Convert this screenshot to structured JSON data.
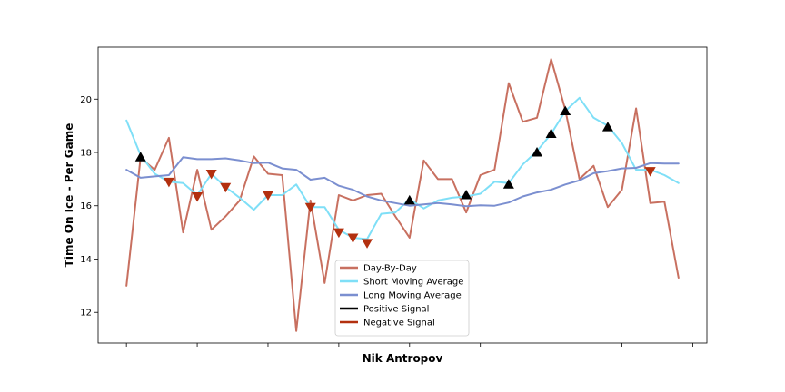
{
  "chart_data": {
    "type": "line",
    "title": "",
    "xlabel": "Nik Antropov",
    "ylabel": "Time On Ice - Per Game",
    "ylim": [
      10.85,
      21.95
    ],
    "xlim": [
      -2,
      41
    ],
    "yticks": [
      12,
      14,
      16,
      18,
      20
    ],
    "x_tick_positions": [
      0,
      5,
      10,
      15,
      20,
      25,
      30,
      35,
      40
    ],
    "x_tick_labels": [
      "",
      "",
      "",
      "",
      "",
      "",
      "",
      "",
      ""
    ],
    "grid": false,
    "legend_position": "lower-center",
    "x": [
      0,
      1,
      2,
      3,
      4,
      5,
      6,
      7,
      8,
      9,
      10,
      11,
      12,
      13,
      14,
      15,
      16,
      17,
      18,
      19,
      20,
      21,
      22,
      23,
      24,
      25,
      26,
      27,
      28,
      29,
      30,
      31,
      32,
      33,
      34,
      35,
      36,
      37,
      38,
      39
    ],
    "series": [
      {
        "name": "Day-By-Day",
        "kind": "line",
        "color": "#c87060",
        "values": [
          13.0,
          17.8,
          17.35,
          18.55,
          15.0,
          17.35,
          15.1,
          15.6,
          16.2,
          17.85,
          17.2,
          17.15,
          11.3,
          16.2,
          13.1,
          16.4,
          16.2,
          16.4,
          16.45,
          15.6,
          14.8,
          17.7,
          17.0,
          17.0,
          15.75,
          17.15,
          17.35,
          20.6,
          19.15,
          19.3,
          21.5,
          19.6,
          17.0,
          17.5,
          15.95,
          16.6,
          19.65,
          16.1,
          16.15,
          13.3
        ]
      },
      {
        "name": "Short Moving Average",
        "kind": "line",
        "color": "#7fdff7",
        "values": [
          19.2,
          17.9,
          17.2,
          16.9,
          16.85,
          16.4,
          17.2,
          16.7,
          16.3,
          15.85,
          16.4,
          16.4,
          16.8,
          15.95,
          15.95,
          15.1,
          14.8,
          14.75,
          15.7,
          15.75,
          16.25,
          15.9,
          16.2,
          16.3,
          16.35,
          16.45,
          16.9,
          16.85,
          17.55,
          18.05,
          18.7,
          19.55,
          20.05,
          19.3,
          19.0,
          18.35,
          17.35,
          17.35,
          17.15,
          16.85
        ]
      },
      {
        "name": "Long Moving Average",
        "kind": "line",
        "color": "#7b8fd0",
        "values": [
          17.35,
          17.05,
          17.1,
          17.15,
          17.82,
          17.75,
          17.75,
          17.78,
          17.7,
          17.6,
          17.62,
          17.4,
          17.35,
          16.98,
          17.05,
          16.75,
          16.6,
          16.35,
          16.2,
          16.1,
          16.0,
          16.05,
          16.1,
          16.05,
          15.98,
          16.02,
          16.0,
          16.12,
          16.35,
          16.5,
          16.6,
          16.8,
          16.95,
          17.22,
          17.3,
          17.4,
          17.42,
          17.6,
          17.58,
          17.58
        ]
      },
      {
        "name": "Positive Signal",
        "kind": "marker",
        "marker": "triangle-up",
        "color": "#000000",
        "x": [
          1,
          20,
          24,
          27,
          29,
          30,
          31,
          34
        ],
        "values": [
          17.82,
          16.2,
          16.4,
          16.8,
          18.0,
          18.7,
          19.55,
          18.95
        ]
      },
      {
        "name": "Negative Signal",
        "kind": "marker",
        "marker": "triangle-down",
        "color": "#b3300f",
        "x": [
          3,
          5,
          6,
          7,
          10,
          13,
          15,
          16,
          17,
          37
        ],
        "values": [
          16.9,
          16.35,
          17.2,
          16.7,
          16.4,
          15.95,
          15.0,
          14.8,
          14.6,
          17.3
        ]
      }
    ]
  }
}
